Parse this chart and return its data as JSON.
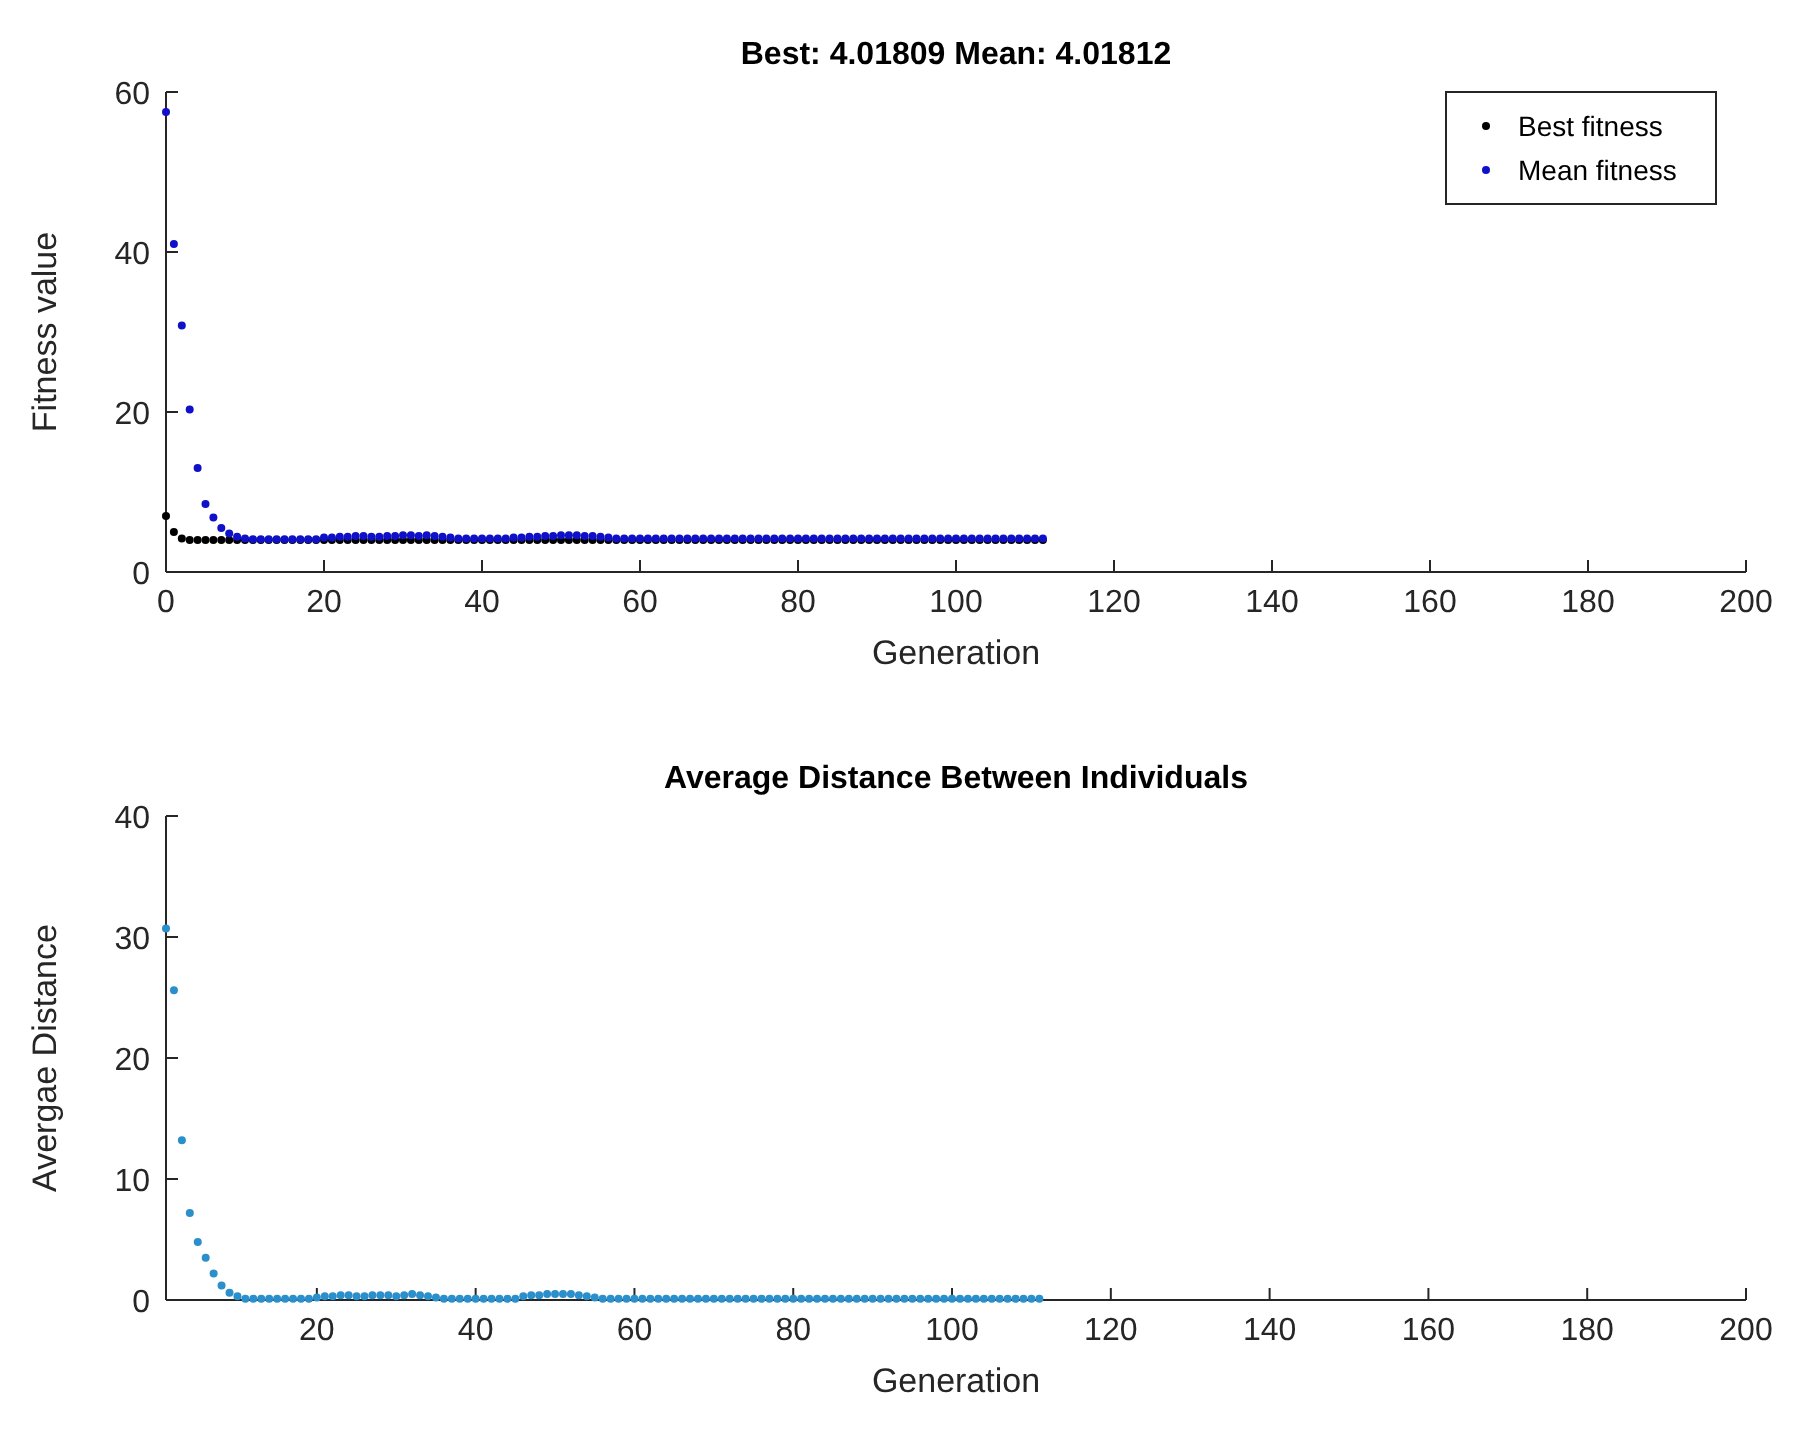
{
  "chart_data": [
    {
      "type": "scatter",
      "title": "Best: 4.01809 Mean: 4.01812",
      "xlabel": "Generation",
      "ylabel": "Fitness value",
      "x": [
        0,
        1,
        2,
        3,
        4,
        5,
        6,
        7,
        8,
        9,
        10,
        11,
        12,
        13,
        14,
        15,
        16,
        17,
        18,
        19,
        20,
        21,
        22,
        23,
        24,
        25,
        26,
        27,
        28,
        29,
        30,
        31,
        32,
        33,
        34,
        35,
        36,
        37,
        38,
        39,
        40,
        41,
        42,
        43,
        44,
        45,
        46,
        47,
        48,
        49,
        50,
        51,
        52,
        53,
        54,
        55,
        56,
        57,
        58,
        59,
        60,
        61,
        62,
        63,
        64,
        65,
        66,
        67,
        68,
        69,
        70,
        71,
        72,
        73,
        74,
        75,
        76,
        77,
        78,
        79,
        80,
        81,
        82,
        83,
        84,
        85,
        86,
        87,
        88,
        89,
        90,
        91,
        92,
        93,
        94,
        95,
        96,
        97,
        98,
        99,
        100,
        101,
        102,
        103,
        104,
        105,
        106,
        107,
        108,
        109,
        110,
        111
      ],
      "series": [
        {
          "name": "Best fitness",
          "color": "#000000",
          "values": [
            7,
            5,
            4.2,
            4,
            4,
            4,
            4,
            4,
            4,
            4,
            4,
            4,
            4,
            4,
            4,
            4,
            4,
            4,
            4,
            4,
            4,
            4,
            4,
            4,
            4,
            4,
            4,
            4,
            4,
            4,
            4,
            4,
            4,
            4,
            4,
            4,
            4,
            4,
            4,
            4,
            4,
            4,
            4,
            4,
            4,
            4,
            4,
            4,
            4,
            4,
            4,
            4,
            4,
            4,
            4,
            4,
            4,
            4,
            4,
            4,
            4,
            4,
            4,
            4,
            4,
            4,
            4,
            4,
            4,
            4,
            4,
            4,
            4,
            4,
            4,
            4,
            4,
            4,
            4,
            4,
            4,
            4,
            4,
            4,
            4,
            4,
            4,
            4,
            4,
            4,
            4,
            4,
            4,
            4,
            4,
            4,
            4,
            4,
            4,
            4,
            4,
            4,
            4,
            4,
            4,
            4,
            4,
            4,
            4,
            4,
            4,
            4
          ]
        },
        {
          "name": "Mean fitness",
          "color": "#1010c8",
          "values": [
            57.5,
            41,
            30.8,
            20.3,
            13,
            8.5,
            6.8,
            5.5,
            4.8,
            4.4,
            4.2,
            4.1,
            4.1,
            4.1,
            4.1,
            4.1,
            4.1,
            4.1,
            4.1,
            4.1,
            4.3,
            4.3,
            4.4,
            4.4,
            4.5,
            4.5,
            4.4,
            4.4,
            4.5,
            4.5,
            4.6,
            4.6,
            4.5,
            4.6,
            4.5,
            4.4,
            4.3,
            4.2,
            4.2,
            4.2,
            4.2,
            4.2,
            4.2,
            4.2,
            4.3,
            4.3,
            4.4,
            4.4,
            4.5,
            4.5,
            4.6,
            4.6,
            4.6,
            4.5,
            4.5,
            4.4,
            4.3,
            4.2,
            4.2,
            4.2,
            4.2,
            4.2,
            4.2,
            4.2,
            4.2,
            4.2,
            4.2,
            4.2,
            4.2,
            4.2,
            4.2,
            4.2,
            4.2,
            4.2,
            4.2,
            4.2,
            4.2,
            4.2,
            4.2,
            4.2,
            4.2,
            4.2,
            4.2,
            4.2,
            4.2,
            4.2,
            4.2,
            4.2,
            4.2,
            4.2,
            4.2,
            4.2,
            4.2,
            4.2,
            4.2,
            4.2,
            4.2,
            4.2,
            4.2,
            4.2,
            4.2,
            4.2,
            4.2,
            4.2,
            4.2,
            4.2,
            4.2,
            4.2,
            4.2,
            4.2,
            4.2,
            4.2
          ]
        }
      ],
      "xlim": [
        0,
        200
      ],
      "xticks": [
        0,
        20,
        40,
        60,
        80,
        100,
        120,
        140,
        160,
        180,
        200
      ],
      "ylim": [
        0,
        60
      ],
      "yticks": [
        0,
        20,
        40,
        60
      ],
      "legend": "top right",
      "marker": "circle",
      "grid": false
    },
    {
      "type": "scatter",
      "title": "Average Distance Between Individuals",
      "xlabel": "Generation",
      "ylabel": "Avergae Distance",
      "x": [
        1,
        2,
        3,
        4,
        5,
        6,
        7,
        8,
        9,
        10,
        11,
        12,
        13,
        14,
        15,
        16,
        17,
        18,
        19,
        20,
        21,
        22,
        23,
        24,
        25,
        26,
        27,
        28,
        29,
        30,
        31,
        32,
        33,
        34,
        35,
        36,
        37,
        38,
        39,
        40,
        41,
        42,
        43,
        44,
        45,
        46,
        47,
        48,
        49,
        50,
        51,
        52,
        53,
        54,
        55,
        56,
        57,
        58,
        59,
        60,
        61,
        62,
        63,
        64,
        65,
        66,
        67,
        68,
        69,
        70,
        71,
        72,
        73,
        74,
        75,
        76,
        77,
        78,
        79,
        80,
        81,
        82,
        83,
        84,
        85,
        86,
        87,
        88,
        89,
        90,
        91,
        92,
        93,
        94,
        95,
        96,
        97,
        98,
        99,
        100,
        101,
        102,
        103,
        104,
        105,
        106,
        107,
        108,
        109,
        110,
        111
      ],
      "series": [
        {
          "color": "#2b8fcb",
          "values": [
            30.7,
            25.6,
            13.2,
            7.2,
            4.8,
            3.5,
            2.2,
            1.2,
            0.6,
            0.3,
            0.1,
            0.1,
            0.1,
            0.1,
            0.1,
            0.1,
            0.1,
            0.1,
            0.1,
            0.2,
            0.3,
            0.3,
            0.4,
            0.4,
            0.3,
            0.3,
            0.4,
            0.4,
            0.4,
            0.3,
            0.4,
            0.5,
            0.4,
            0.3,
            0.2,
            0.1,
            0.1,
            0.1,
            0.1,
            0.1,
            0.1,
            0.1,
            0.1,
            0.1,
            0.1,
            0.3,
            0.4,
            0.4,
            0.5,
            0.5,
            0.5,
            0.5,
            0.4,
            0.3,
            0.2,
            0.1,
            0.1,
            0.1,
            0.1,
            0.1,
            0.1,
            0.1,
            0.1,
            0.1,
            0.1,
            0.1,
            0.1,
            0.1,
            0.1,
            0.1,
            0.1,
            0.1,
            0.1,
            0.1,
            0.1,
            0.1,
            0.1,
            0.1,
            0.1,
            0.1,
            0.1,
            0.1,
            0.1,
            0.1,
            0.1,
            0.1,
            0.1,
            0.1,
            0.1,
            0.1,
            0.1,
            0.1,
            0.1,
            0.1,
            0.1,
            0.1,
            0.1,
            0.1,
            0.1,
            0.1,
            0.1,
            0.1,
            0.1,
            0.1,
            0.1,
            0.1,
            0.1,
            0.1,
            0.1,
            0.1,
            0.1
          ]
        }
      ],
      "xlim": [
        1,
        200
      ],
      "xticks": [
        20,
        40,
        60,
        80,
        100,
        120,
        140,
        160,
        180,
        200
      ],
      "ylim": [
        0,
        40
      ],
      "yticks": [
        0,
        10,
        20,
        30,
        40
      ],
      "marker": "circle",
      "grid": false
    }
  ]
}
